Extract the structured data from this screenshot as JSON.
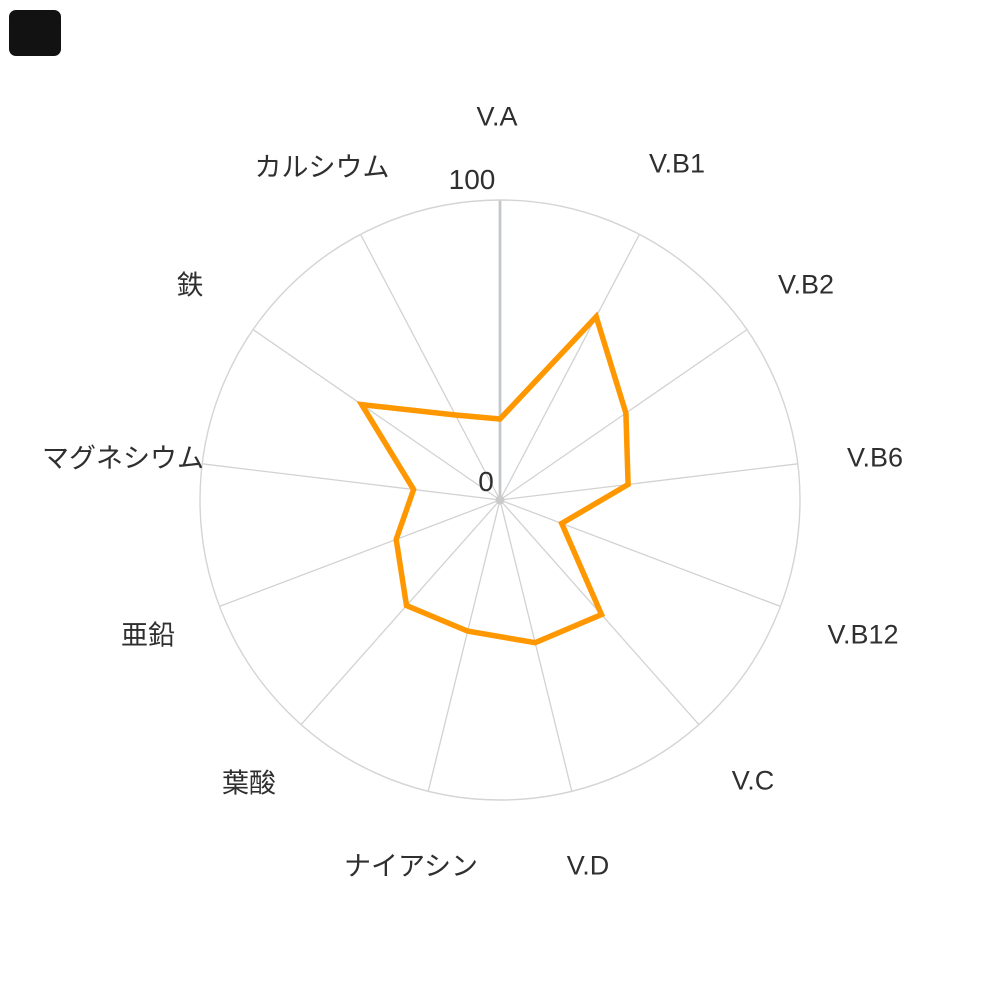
{
  "chart_data": {
    "type": "radar",
    "title": "",
    "categories": [
      "V.A",
      "V.B1",
      "V.B2",
      "V.B6",
      "V.B12",
      "V.C",
      "V.D",
      "ナイアシン",
      "葉酸",
      "亜鉛",
      "マグネシウム",
      "鉄",
      "カルシウム"
    ],
    "series": [
      {
        "name": "",
        "values": [
          27,
          69,
          51,
          43,
          22,
          51,
          49,
          45,
          47,
          37,
          29,
          56,
          32
        ]
      }
    ],
    "axis_count": 13,
    "rmin": 0,
    "rmax": 100,
    "tick_labels": [
      "0",
      "100"
    ],
    "grid_shape": "circle",
    "grid_on": true,
    "legend_position": "none",
    "colors": {
      "line": "#FF9800",
      "web": "#D2D2D2",
      "main_axis": "#C5C8CB",
      "label": "#2F2F2F",
      "corner_patch": "#121212",
      "background": "#FFFFFF"
    }
  }
}
